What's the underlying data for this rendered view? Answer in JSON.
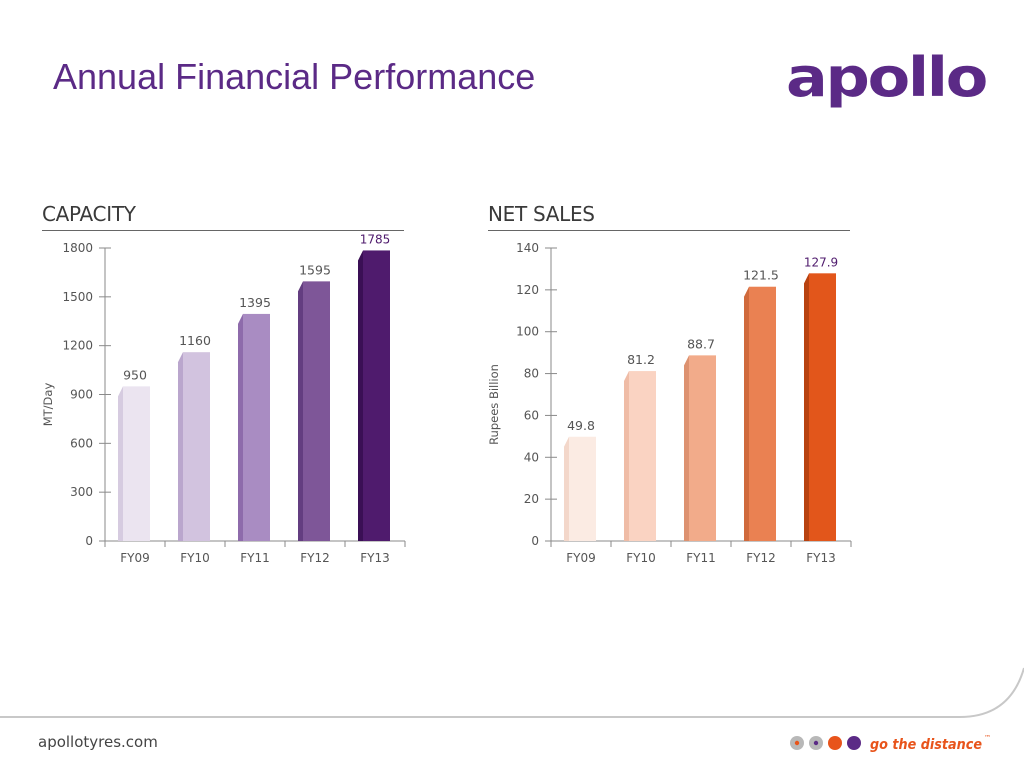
{
  "slide": {
    "title": "Annual Financial Performance",
    "logo_text": "apollo",
    "footer_url": "apollotyres.com",
    "tagline": "go the distance",
    "tagline_mark": "™"
  },
  "colors": {
    "title": "#5b2a86",
    "logo": "#5b2a86",
    "tagline": "#e8541b",
    "footer_rule": "#c8c8c8"
  },
  "chart_data": [
    {
      "type": "bar",
      "title": "CAPACITY",
      "ylabel": "MT/Day",
      "xlabel": "",
      "categories": [
        "FY09",
        "FY10",
        "FY11",
        "FY12",
        "FY13"
      ],
      "values": [
        950,
        1160,
        1395,
        1595,
        1785
      ],
      "value_labels": [
        "950",
        "1160",
        "1395",
        "1595",
        "1785"
      ],
      "ylim": [
        0,
        1800
      ],
      "yticks": [
        0,
        300,
        600,
        900,
        1200,
        1500,
        1800
      ],
      "bar_colors": [
        "#ebe4f0",
        "#d2c3df",
        "#a98cc2",
        "#7e5698",
        "#4f1b6d"
      ],
      "bar_side_colors": [
        "#d6cbe0",
        "#baa6cd",
        "#8e6bab",
        "#633d80",
        "#3a0f55"
      ],
      "highlight_label_color": "#4f1b6d",
      "grid": false,
      "legend": "none"
    },
    {
      "type": "bar",
      "title": "NET SALES",
      "ylabel": "Rupees Billion",
      "xlabel": "",
      "categories": [
        "FY09",
        "FY10",
        "FY11",
        "FY12",
        "FY13"
      ],
      "values": [
        49.8,
        81.2,
        88.7,
        121.5,
        127.9
      ],
      "value_labels": [
        "49.8",
        "81.2",
        "88.7",
        "121.5",
        "127.9"
      ],
      "ylim": [
        0,
        140
      ],
      "yticks": [
        0,
        20,
        40,
        60,
        80,
        100,
        120,
        140
      ],
      "bar_colors": [
        "#fbebe3",
        "#fad3c2",
        "#f2ab8a",
        "#ea8152",
        "#e2561b"
      ],
      "bar_side_colors": [
        "#f3d7ca",
        "#efbca6",
        "#dd9270",
        "#d06a3c",
        "#b84210"
      ],
      "highlight_label_color": "#4f1b6d",
      "grid": false,
      "legend": "none"
    }
  ]
}
